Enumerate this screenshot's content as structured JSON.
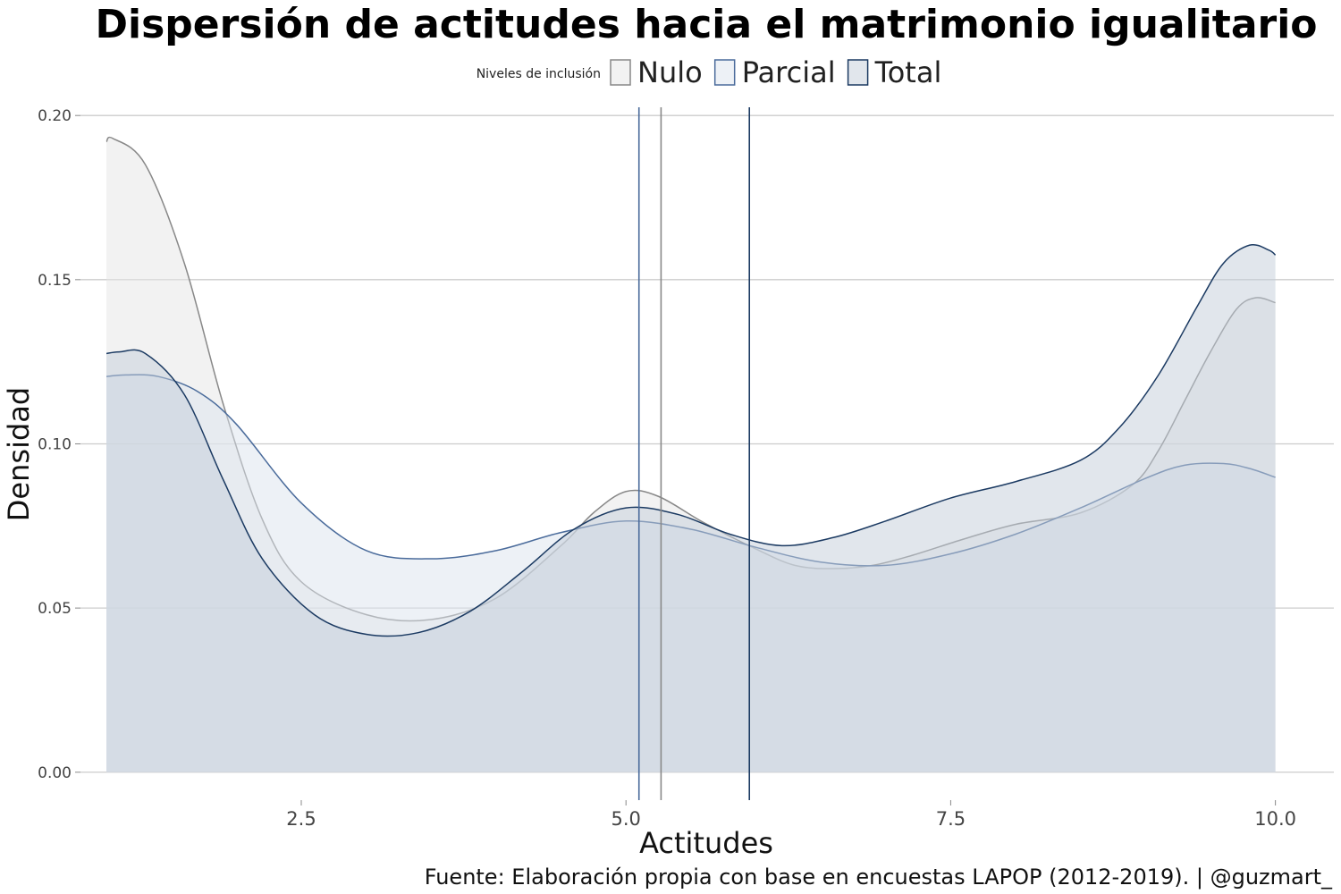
{
  "chart_data": {
    "type": "area",
    "title": "Dispersión de actitudes hacia el matrimonio igualitario",
    "xlabel": "Actitudes",
    "ylabel": "Densidad",
    "caption": "Fuente: Elaboración propia con base en encuestas LAPOP (2012-2019). | @guzmart_",
    "legend": {
      "title": "Niveles de inclusión",
      "placement": "top"
    },
    "xlim": [
      0.8,
      10.45
    ],
    "ylim": [
      -0.0085,
      0.2025
    ],
    "xticks": [
      2.5,
      5.0,
      7.5,
      10.0
    ],
    "xtick_labels": [
      "2.5",
      "5.0",
      "7.5",
      "10.0"
    ],
    "yticks": [
      0.0,
      0.05,
      0.1,
      0.15,
      0.2
    ],
    "ytick_labels": [
      "0.00",
      "0.05",
      "0.10",
      "0.15",
      "0.20"
    ],
    "grid": "horizontal",
    "series": [
      {
        "name": "Nulo",
        "color": "#888888",
        "fill": "#e6e6e6",
        "mean": 5.27,
        "x": [
          1.0,
          1.05,
          1.3,
          1.6,
          1.9,
          2.2,
          2.5,
          3.0,
          3.5,
          4.0,
          4.5,
          4.75,
          5.0,
          5.25,
          5.6,
          6.0,
          6.3,
          6.6,
          6.9,
          7.2,
          7.6,
          8.0,
          8.5,
          8.9,
          9.1,
          9.3,
          9.5,
          9.7,
          9.85,
          10.0
        ],
        "y": [
          0.192,
          0.193,
          0.185,
          0.155,
          0.112,
          0.077,
          0.058,
          0.048,
          0.0465,
          0.053,
          0.069,
          0.079,
          0.0855,
          0.084,
          0.076,
          0.068,
          0.063,
          0.062,
          0.063,
          0.066,
          0.071,
          0.0755,
          0.079,
          0.0875,
          0.098,
          0.113,
          0.128,
          0.141,
          0.1445,
          0.143
        ]
      },
      {
        "name": "Parcial",
        "color": "#4a6b9b",
        "fill": "#dbe3ee",
        "mean": 5.1,
        "x": [
          1.0,
          1.15,
          1.4,
          1.7,
          2.0,
          2.5,
          3.0,
          3.5,
          4.0,
          4.5,
          5.0,
          5.5,
          6.0,
          6.5,
          7.0,
          7.5,
          8.0,
          8.5,
          9.0,
          9.3,
          9.6,
          9.8,
          10.0
        ],
        "y": [
          0.1205,
          0.121,
          0.1205,
          0.116,
          0.106,
          0.082,
          0.0675,
          0.065,
          0.0675,
          0.073,
          0.0765,
          0.074,
          0.0685,
          0.064,
          0.063,
          0.0665,
          0.0725,
          0.0805,
          0.0895,
          0.0935,
          0.094,
          0.0925,
          0.0898
        ]
      },
      {
        "name": "Total",
        "color": "#1b3a62",
        "fill": "#c3cdda",
        "mean": 5.95,
        "x": [
          1.0,
          1.1,
          1.3,
          1.6,
          1.9,
          2.2,
          2.6,
          3.0,
          3.4,
          3.8,
          4.2,
          4.6,
          5.0,
          5.4,
          5.8,
          6.2,
          6.6,
          7.0,
          7.5,
          8.0,
          8.5,
          8.8,
          9.1,
          9.4,
          9.6,
          9.8,
          9.95,
          10.0
        ],
        "y": [
          0.1275,
          0.128,
          0.1275,
          0.115,
          0.089,
          0.065,
          0.048,
          0.042,
          0.0425,
          0.049,
          0.061,
          0.074,
          0.0805,
          0.0785,
          0.0725,
          0.069,
          0.0715,
          0.0765,
          0.0835,
          0.0885,
          0.095,
          0.105,
          0.121,
          0.142,
          0.155,
          0.1605,
          0.159,
          0.1575
        ]
      }
    ]
  }
}
